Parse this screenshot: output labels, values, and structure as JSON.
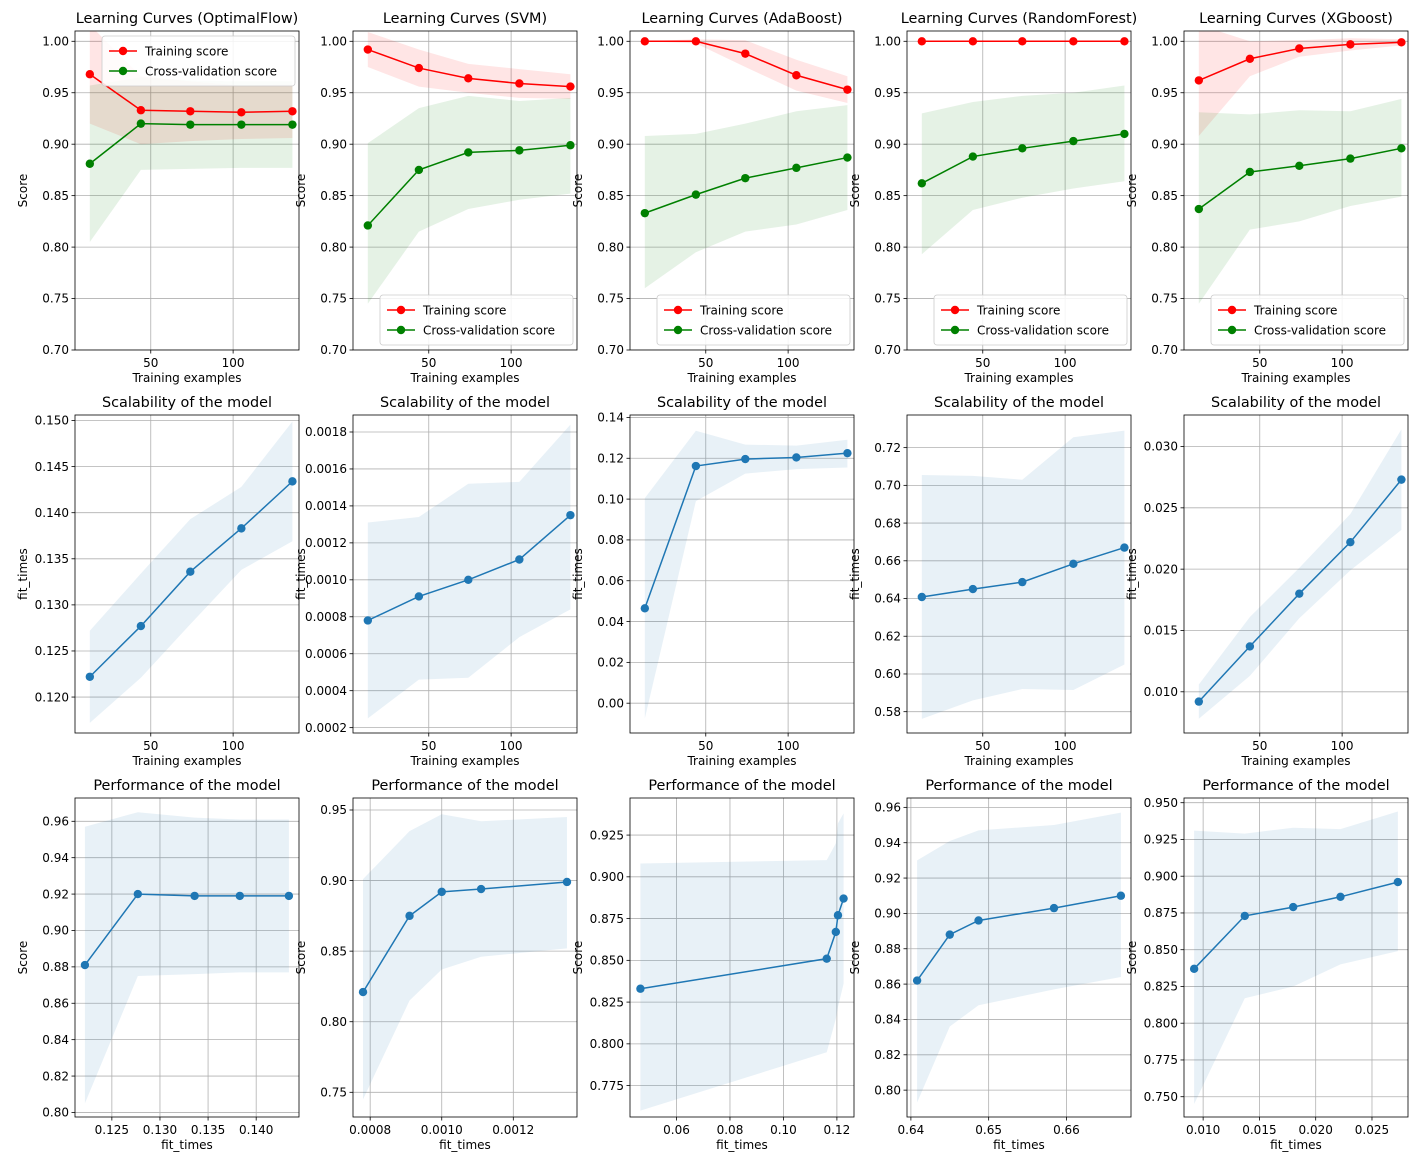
{
  "legend_labels": {
    "training": "Training score",
    "cv": "Cross-validation score"
  },
  "colors": {
    "training": "#ff0000",
    "cv": "#008000",
    "model": "#1f77b4",
    "grid": "#b0b0b0"
  },
  "chart_data": [
    {
      "type": "line",
      "row": 0,
      "col": 0,
      "title": "Learning Curves (OptimalFlow)",
      "xlabel": "Training examples",
      "ylabel": "Score",
      "xlim": [
        4,
        140
      ],
      "ylim": [
        0.7,
        1.01
      ],
      "xticks": [
        50,
        100
      ],
      "yticks": [
        "0.70",
        "0.75",
        "0.80",
        "0.85",
        "0.90",
        "0.95",
        "1.00"
      ],
      "grid": true,
      "legend": "upper right",
      "x": [
        13,
        44,
        74,
        105,
        136
      ],
      "series": [
        {
          "name": "Training score",
          "color": "#ff0000",
          "values": [
            0.968,
            0.933,
            0.932,
            0.931,
            0.932
          ],
          "band_low": [
            0.92,
            0.9,
            0.903,
            0.905,
            0.906
          ],
          "band_high": [
            1.016,
            0.966,
            0.961,
            0.957,
            0.958
          ]
        },
        {
          "name": "Cross-validation score",
          "color": "#008000",
          "values": [
            0.881,
            0.92,
            0.919,
            0.919,
            0.919
          ],
          "band_low": [
            0.805,
            0.875,
            0.876,
            0.877,
            0.877
          ],
          "band_high": [
            0.957,
            0.965,
            0.962,
            0.961,
            0.961
          ]
        }
      ]
    },
    {
      "type": "line",
      "row": 0,
      "col": 1,
      "title": "Learning Curves (SVM)",
      "xlabel": "Training examples",
      "ylabel": "Score",
      "xlim": [
        4,
        140
      ],
      "ylim": [
        0.7,
        1.01
      ],
      "xticks": [
        50,
        100
      ],
      "yticks": [
        "0.70",
        "0.75",
        "0.80",
        "0.85",
        "0.90",
        "0.95",
        "1.00"
      ],
      "grid": true,
      "legend": "lower right",
      "x": [
        13,
        44,
        74,
        105,
        136
      ],
      "series": [
        {
          "name": "Training score",
          "color": "#ff0000",
          "values": [
            0.992,
            0.974,
            0.964,
            0.959,
            0.956
          ],
          "band_low": [
            0.975,
            0.956,
            0.95,
            0.945,
            0.944
          ],
          "band_high": [
            1.009,
            0.992,
            0.978,
            0.973,
            0.968
          ]
        },
        {
          "name": "Cross-validation score",
          "color": "#008000",
          "values": [
            0.821,
            0.875,
            0.892,
            0.894,
            0.899
          ],
          "band_low": [
            0.745,
            0.815,
            0.837,
            0.846,
            0.852
          ],
          "band_high": [
            0.901,
            0.935,
            0.947,
            0.942,
            0.945
          ]
        }
      ]
    },
    {
      "type": "line",
      "row": 0,
      "col": 2,
      "title": "Learning Curves (AdaBoost)",
      "xlabel": "Training examples",
      "ylabel": "Score",
      "xlim": [
        4,
        140
      ],
      "ylim": [
        0.7,
        1.01
      ],
      "xticks": [
        50,
        100
      ],
      "yticks": [
        "0.70",
        "0.75",
        "0.80",
        "0.85",
        "0.90",
        "0.95",
        "1.00"
      ],
      "grid": true,
      "legend": "lower right",
      "x": [
        13,
        44,
        74,
        105,
        136
      ],
      "series": [
        {
          "name": "Training score",
          "color": "#ff0000",
          "values": [
            1.0,
            1.0,
            0.988,
            0.967,
            0.953
          ],
          "band_low": [
            1.0,
            0.998,
            0.975,
            0.952,
            0.94
          ],
          "band_high": [
            1.0,
            1.002,
            1.001,
            0.982,
            0.966
          ]
        },
        {
          "name": "Cross-validation score",
          "color": "#008000",
          "values": [
            0.833,
            0.851,
            0.867,
            0.877,
            0.887
          ],
          "band_low": [
            0.76,
            0.795,
            0.815,
            0.822,
            0.836
          ],
          "band_high": [
            0.908,
            0.91,
            0.92,
            0.932,
            0.938
          ]
        }
      ]
    },
    {
      "type": "line",
      "row": 0,
      "col": 3,
      "title": "Learning Curves (RandomForest)",
      "xlabel": "Training examples",
      "ylabel": "Score",
      "xlim": [
        4,
        140
      ],
      "ylim": [
        0.7,
        1.01
      ],
      "xticks": [
        50,
        100
      ],
      "yticks": [
        "0.70",
        "0.75",
        "0.80",
        "0.85",
        "0.90",
        "0.95",
        "1.00"
      ],
      "grid": true,
      "legend": "lower right",
      "x": [
        13,
        44,
        74,
        105,
        136
      ],
      "series": [
        {
          "name": "Training score",
          "color": "#ff0000",
          "values": [
            1.0,
            1.0,
            1.0,
            1.0,
            1.0
          ],
          "band_low": [
            1.0,
            1.0,
            1.0,
            1.0,
            1.0
          ],
          "band_high": [
            1.0,
            1.0,
            1.0,
            1.0,
            1.0
          ]
        },
        {
          "name": "Cross-validation score",
          "color": "#008000",
          "values": [
            0.862,
            0.888,
            0.896,
            0.903,
            0.91
          ],
          "band_low": [
            0.793,
            0.836,
            0.848,
            0.857,
            0.864
          ],
          "band_high": [
            0.93,
            0.941,
            0.947,
            0.95,
            0.957
          ]
        }
      ]
    },
    {
      "type": "line",
      "row": 0,
      "col": 4,
      "title": "Learning Curves (XGboost)",
      "xlabel": "Training examples",
      "ylabel": "Score",
      "xlim": [
        4,
        140
      ],
      "ylim": [
        0.7,
        1.01
      ],
      "xticks": [
        50,
        100
      ],
      "yticks": [
        "0.70",
        "0.75",
        "0.80",
        "0.85",
        "0.90",
        "0.95",
        "1.00"
      ],
      "grid": true,
      "legend": "lower right",
      "x": [
        13,
        44,
        74,
        105,
        136
      ],
      "series": [
        {
          "name": "Training score",
          "color": "#ff0000",
          "values": [
            0.962,
            0.983,
            0.993,
            0.997,
            0.999
          ],
          "band_low": [
            0.908,
            0.966,
            0.985,
            0.991,
            0.996
          ],
          "band_high": [
            1.016,
            1.0,
            1.001,
            1.003,
            1.002
          ]
        },
        {
          "name": "Cross-validation score",
          "color": "#008000",
          "values": [
            0.837,
            0.873,
            0.879,
            0.886,
            0.896
          ],
          "band_low": [
            0.745,
            0.817,
            0.825,
            0.84,
            0.849
          ],
          "band_high": [
            0.931,
            0.929,
            0.933,
            0.932,
            0.944
          ]
        }
      ]
    },
    {
      "type": "line",
      "row": 1,
      "col": 0,
      "title": "Scalability of the model",
      "xlabel": "Training examples",
      "ylabel": "fit_times",
      "xlim": [
        4,
        140
      ],
      "ylim": [
        0.1161,
        0.1506
      ],
      "xticks": [
        50,
        100
      ],
      "yticks": [
        "0.120",
        "0.125",
        "0.130",
        "0.135",
        "0.140",
        "0.145",
        "0.150"
      ],
      "grid": true,
      "x": [
        13,
        44,
        74,
        105,
        136
      ],
      "series": [
        {
          "color": "#1f77b4",
          "values": [
            0.1222,
            0.1277,
            0.1336,
            0.1383,
            0.1434
          ],
          "band_low": [
            0.1172,
            0.1221,
            0.1279,
            0.1338,
            0.1369
          ],
          "band_high": [
            0.1272,
            0.1334,
            0.1393,
            0.1428,
            0.1499
          ]
        }
      ]
    },
    {
      "type": "line",
      "row": 1,
      "col": 1,
      "title": "Scalability of the model",
      "xlabel": "Training examples",
      "ylabel": "fit_times",
      "xlim": [
        4,
        140
      ],
      "ylim": [
        0.000171,
        0.001892
      ],
      "xticks": [
        50,
        100
      ],
      "yticks": [
        "0.0002",
        "0.0004",
        "0.0006",
        "0.0008",
        "0.0010",
        "0.0012",
        "0.0014",
        "0.0016",
        "0.0018"
      ],
      "grid": true,
      "x": [
        13,
        44,
        74,
        105,
        136
      ],
      "series": [
        {
          "color": "#1f77b4",
          "values": [
            0.00078,
            0.00091,
            0.001,
            0.00111,
            0.00135
          ],
          "band_low": [
            0.00025,
            0.00046,
            0.00047,
            0.00069,
            0.00084
          ],
          "band_high": [
            0.00131,
            0.00134,
            0.00152,
            0.00153,
            0.00184
          ]
        }
      ]
    },
    {
      "type": "line",
      "row": 1,
      "col": 2,
      "title": "Scalability of the model",
      "xlabel": "Training examples",
      "ylabel": "fit_times",
      "xlim": [
        4,
        140
      ],
      "ylim": [
        -0.0146,
        0.1412
      ],
      "xticks": [
        50,
        100
      ],
      "yticks": [
        "0.00",
        "0.02",
        "0.04",
        "0.06",
        "0.08",
        "0.10",
        "0.12",
        "0.14"
      ],
      "grid": true,
      "x": [
        13,
        44,
        74,
        105,
        136
      ],
      "series": [
        {
          "color": "#1f77b4",
          "values": [
            0.0465,
            0.1162,
            0.1196,
            0.1204,
            0.1225
          ],
          "band_low": [
            -0.0075,
            0.099,
            0.1125,
            0.1147,
            0.1155
          ],
          "band_high": [
            0.1005,
            0.1335,
            0.1267,
            0.1262,
            0.1291
          ]
        }
      ]
    },
    {
      "type": "line",
      "row": 1,
      "col": 3,
      "title": "Scalability of the model",
      "xlabel": "Training examples",
      "ylabel": "fit_times",
      "xlim": [
        4,
        140
      ],
      "ylim": [
        0.5687,
        0.7373
      ],
      "xticks": [
        50,
        100
      ],
      "yticks": [
        "0.58",
        "0.60",
        "0.62",
        "0.64",
        "0.66",
        "0.68",
        "0.70",
        "0.72"
      ],
      "grid": true,
      "x": [
        13,
        44,
        74,
        105,
        136
      ],
      "series": [
        {
          "color": "#1f77b4",
          "values": [
            0.6408,
            0.645,
            0.6487,
            0.6584,
            0.667
          ],
          "band_low": [
            0.5762,
            0.586,
            0.592,
            0.5915,
            0.605
          ],
          "band_high": [
            0.7055,
            0.705,
            0.703,
            0.7255,
            0.729
          ]
        }
      ]
    },
    {
      "type": "line",
      "row": 1,
      "col": 4,
      "title": "Scalability of the model",
      "xlabel": "Training examples",
      "ylabel": "fit_times",
      "xlim": [
        4,
        140
      ],
      "ylim": [
        0.00664,
        0.03257
      ],
      "xticks": [
        50,
        100
      ],
      "yticks": [
        "0.010",
        "0.015",
        "0.020",
        "0.025",
        "0.030"
      ],
      "grid": true,
      "x": [
        13,
        44,
        74,
        105,
        136
      ],
      "series": [
        {
          "color": "#1f77b4",
          "values": [
            0.0092,
            0.0137,
            0.018,
            0.0222,
            0.0273
          ],
          "band_low": [
            0.0078,
            0.0113,
            0.016,
            0.0199,
            0.0232
          ],
          "band_high": [
            0.0106,
            0.0161,
            0.0201,
            0.0245,
            0.0314
          ]
        }
      ]
    },
    {
      "type": "line",
      "row": 2,
      "col": 0,
      "title": "Performance of the model",
      "xlabel": "fit_times",
      "ylabel": "Score",
      "xlim": [
        0.12117,
        0.14445
      ],
      "ylim": [
        0.7975,
        0.9728
      ],
      "xticks": [
        "0.125",
        "0.130",
        "0.135",
        "0.140"
      ],
      "yticks": [
        "0.80",
        "0.82",
        "0.84",
        "0.86",
        "0.88",
        "0.90",
        "0.92",
        "0.94",
        "0.96"
      ],
      "grid": true,
      "x": [
        0.1222,
        0.1277,
        0.1336,
        0.1383,
        0.1434
      ],
      "series": [
        {
          "color": "#1f77b4",
          "values": [
            0.881,
            0.92,
            0.919,
            0.919,
            0.919
          ],
          "band_low": [
            0.805,
            0.875,
            0.876,
            0.877,
            0.877
          ],
          "band_high": [
            0.957,
            0.965,
            0.962,
            0.961,
            0.961
          ]
        }
      ]
    },
    {
      "type": "line",
      "row": 2,
      "col": 1,
      "title": "Performance of the model",
      "xlabel": "fit_times",
      "ylabel": "Score",
      "xlim": [
        0.000752,
        0.001378
      ],
      "ylim": [
        0.7325,
        0.9585
      ],
      "xticks": [
        "0.0008",
        "0.0010",
        "0.0012"
      ],
      "yticks": [
        "0.75",
        "0.80",
        "0.85",
        "0.90",
        "0.95"
      ],
      "grid": true,
      "x": [
        0.00078,
        0.00091,
        0.001,
        0.00111,
        0.00135
      ],
      "series": [
        {
          "color": "#1f77b4",
          "values": [
            0.821,
            0.875,
            0.892,
            0.894,
            0.899
          ],
          "band_low": [
            0.745,
            0.815,
            0.837,
            0.846,
            0.852
          ],
          "band_high": [
            0.901,
            0.935,
            0.947,
            0.942,
            0.945
          ]
        }
      ]
    },
    {
      "type": "line",
      "row": 2,
      "col": 2,
      "title": "Performance of the model",
      "xlabel": "fit_times",
      "ylabel": "Score",
      "xlim": [
        0.0426,
        0.1264
      ],
      "ylim": [
        0.7562,
        0.9472
      ],
      "xticks": [
        "0.06",
        "0.08",
        "0.10",
        "0.12"
      ],
      "yticks": [
        "0.775",
        "0.800",
        "0.825",
        "0.850",
        "0.875",
        "0.900",
        "0.925"
      ],
      "grid": true,
      "x": [
        0.0465,
        0.1162,
        0.1196,
        0.1204,
        0.1225
      ],
      "series": [
        {
          "color": "#1f77b4",
          "values": [
            0.833,
            0.851,
            0.867,
            0.877,
            0.887
          ],
          "band_low": [
            0.76,
            0.795,
            0.815,
            0.822,
            0.836
          ],
          "band_high": [
            0.908,
            0.91,
            0.92,
            0.932,
            0.938
          ]
        }
      ]
    },
    {
      "type": "line",
      "row": 2,
      "col": 3,
      "title": "Performance of the model",
      "xlabel": "fit_times",
      "ylabel": "Score",
      "xlim": [
        0.6395,
        0.6683
      ],
      "ylim": [
        0.7848,
        0.9653
      ],
      "xticks": [
        "0.64",
        "0.65",
        "0.66"
      ],
      "yticks": [
        "0.80",
        "0.82",
        "0.84",
        "0.86",
        "0.88",
        "0.90",
        "0.92",
        "0.94",
        "0.96"
      ],
      "grid": true,
      "x": [
        0.6408,
        0.645,
        0.6487,
        0.6584,
        0.667
      ],
      "series": [
        {
          "color": "#1f77b4",
          "values": [
            0.862,
            0.888,
            0.896,
            0.903,
            0.91
          ],
          "band_low": [
            0.793,
            0.836,
            0.848,
            0.857,
            0.864
          ],
          "band_high": [
            0.93,
            0.941,
            0.947,
            0.95,
            0.957
          ]
        }
      ]
    },
    {
      "type": "line",
      "row": 2,
      "col": 4,
      "title": "Performance of the model",
      "xlabel": "fit_times",
      "ylabel": "Score",
      "xlim": [
        0.0083,
        0.0282
      ],
      "ylim": [
        0.7362,
        0.9532
      ],
      "xticks": [
        "0.010",
        "0.015",
        "0.020",
        "0.025"
      ],
      "yticks": [
        "0.750",
        "0.775",
        "0.800",
        "0.825",
        "0.850",
        "0.875",
        "0.900",
        "0.925",
        "0.950"
      ],
      "grid": true,
      "x": [
        0.0092,
        0.0137,
        0.018,
        0.0222,
        0.0273
      ],
      "series": [
        {
          "color": "#1f77b4",
          "values": [
            0.837,
            0.873,
            0.879,
            0.886,
            0.896
          ],
          "band_low": [
            0.745,
            0.817,
            0.825,
            0.84,
            0.849
          ],
          "band_high": [
            0.931,
            0.929,
            0.933,
            0.932,
            0.944
          ]
        }
      ]
    }
  ]
}
